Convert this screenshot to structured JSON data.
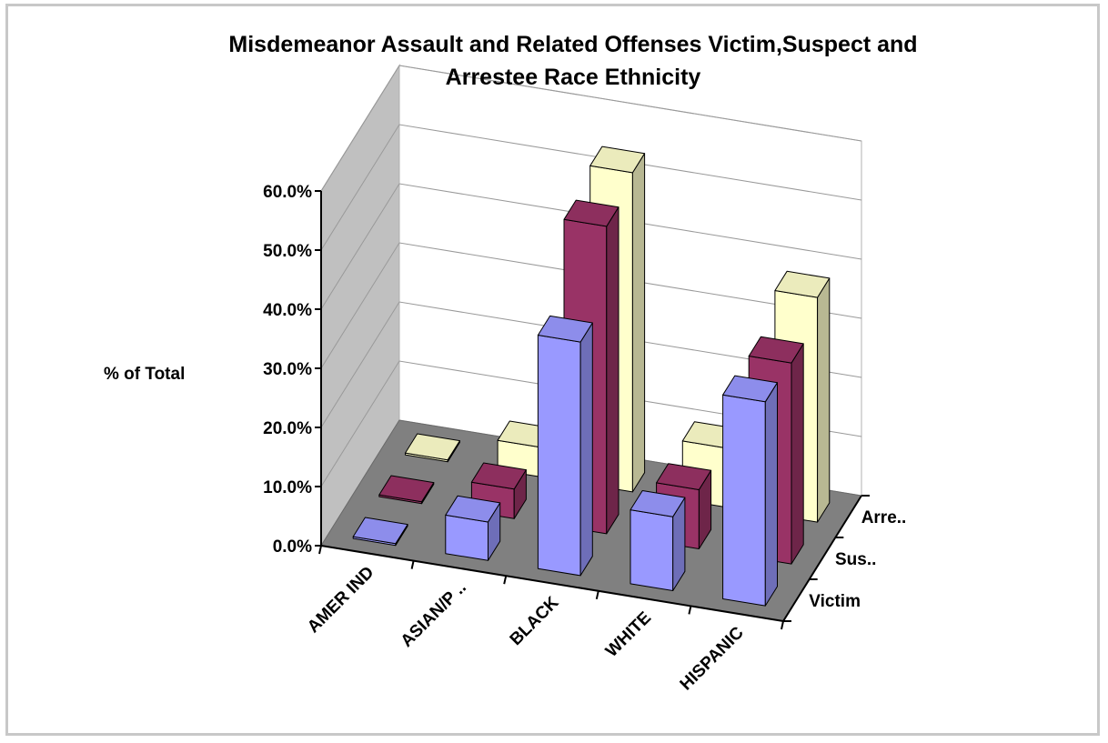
{
  "chart_data": {
    "type": "bar",
    "title_lines": [
      "Misdemeanor Assault and Related Offenses Victim,Suspect and",
      "Arrestee Race Ethnicity"
    ],
    "ylabel": "% of Total",
    "ylim": [
      0,
      60
    ],
    "yticks": [
      "0.0%",
      "10.0%",
      "20.0%",
      "30.0%",
      "40.0%",
      "50.0%",
      "60.0%"
    ],
    "categories": [
      "AMER IND",
      "ASIAN/P ..",
      "BLACK",
      "WHITE",
      "HISPANIC"
    ],
    "depth_labels": [
      "Victim",
      "Sus..",
      "Arre.."
    ],
    "series": [
      {
        "name": "Victim",
        "color": "#9999ff",
        "values": [
          0.3,
          6.5,
          39.5,
          12.5,
          34.5
        ]
      },
      {
        "name": "Suspect",
        "color": "#993366",
        "values": [
          0.3,
          5.0,
          52.0,
          10.0,
          34.0
        ]
      },
      {
        "name": "Arrestee",
        "color": "#ffffcc",
        "values": [
          0.3,
          5.0,
          54.0,
          10.0,
          38.0
        ]
      }
    ],
    "grid": true,
    "legend": "none"
  }
}
